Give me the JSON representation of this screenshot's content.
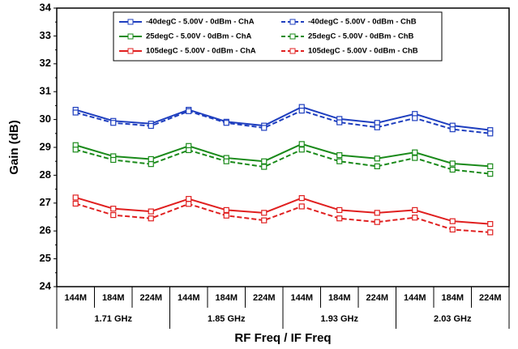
{
  "chart_data": {
    "type": "line",
    "xlabel": "RF Freq / IF Freq",
    "ylabel": "Gain (dB)",
    "categories": [
      "144M",
      "184M",
      "224M",
      "144M",
      "184M",
      "224M",
      "144M",
      "184M",
      "224M",
      "144M",
      "184M",
      "224M"
    ],
    "category_groups": [
      "1.71 GHz",
      "1.85 GHz",
      "1.93 GHz",
      "2.03 GHz"
    ],
    "ylim": [
      24,
      34
    ],
    "yticks": [
      24,
      25,
      26,
      27,
      28,
      29,
      30,
      31,
      32,
      33,
      34
    ],
    "grid": false,
    "legend": "top",
    "series": [
      {
        "name": "-40degC - 5.00V - 0dBm - ChA",
        "color": "#1f3fbf",
        "line_style": "solid",
        "values": [
          30.35,
          29.95,
          29.85,
          30.35,
          29.92,
          29.78,
          30.45,
          30.02,
          29.88,
          30.2,
          29.78,
          29.62
        ]
      },
      {
        "name": "-40degC - 5.00V - 0dBm - ChB",
        "color": "#1f3fbf",
        "line_style": "dashed",
        "values": [
          30.25,
          29.88,
          29.77,
          30.3,
          29.88,
          29.7,
          30.32,
          29.9,
          29.72,
          30.05,
          29.65,
          29.5
        ]
      },
      {
        "name": "25degC - 5.00V - 0dBm - ChA",
        "color": "#1a8a1a",
        "line_style": "solid",
        "values": [
          29.08,
          28.68,
          28.58,
          29.05,
          28.62,
          28.5,
          29.12,
          28.72,
          28.6,
          28.82,
          28.42,
          28.32
        ]
      },
      {
        "name": "25degC - 5.00V - 0dBm - ChB",
        "color": "#1a8a1a",
        "line_style": "dashed",
        "values": [
          28.92,
          28.55,
          28.4,
          28.9,
          28.5,
          28.3,
          28.92,
          28.5,
          28.32,
          28.62,
          28.2,
          28.05
        ]
      },
      {
        "name": "105degC - 5.00V - 0dBm - ChA",
        "color": "#e02020",
        "line_style": "solid",
        "values": [
          27.2,
          26.8,
          26.7,
          27.15,
          26.75,
          26.65,
          27.18,
          26.75,
          26.65,
          26.75,
          26.35,
          26.25
        ]
      },
      {
        "name": "105degC - 5.00V - 0dBm - ChB",
        "color": "#e02020",
        "line_style": "dashed",
        "values": [
          26.98,
          26.57,
          26.45,
          26.97,
          26.55,
          26.38,
          26.88,
          26.45,
          26.32,
          26.48,
          26.05,
          25.95
        ]
      }
    ]
  }
}
